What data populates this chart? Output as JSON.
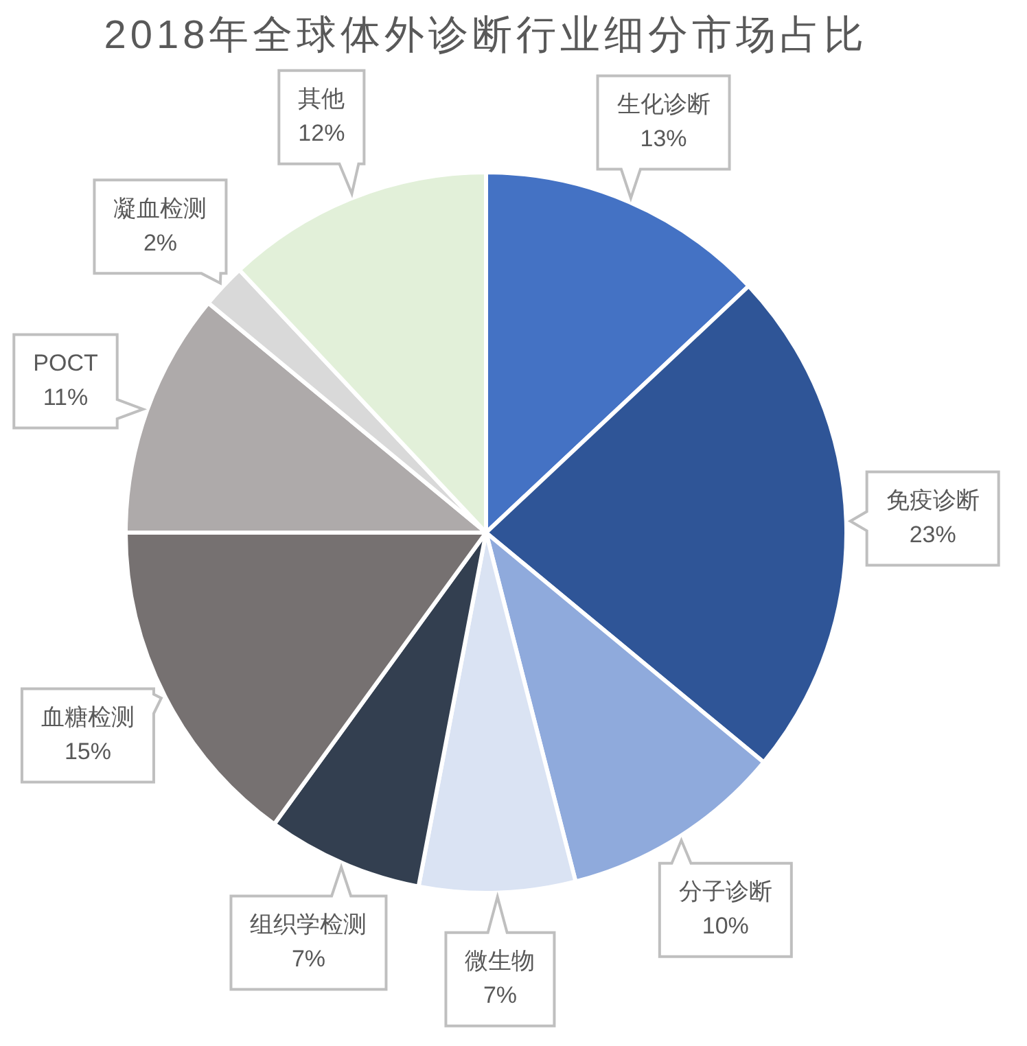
{
  "chart_data": {
    "type": "pie",
    "title": "2018年全球体外诊断行业细分市场占比",
    "categories": [
      "生化诊断",
      "免疫诊断",
      "分子诊断",
      "微生物",
      "组织学检测",
      "血糖检测",
      "POCT",
      "凝血检测",
      "其他"
    ],
    "values": [
      13,
      23,
      10,
      7,
      7,
      15,
      11,
      2,
      12
    ],
    "colors": [
      "#4472c4",
      "#2f5597",
      "#8faadc",
      "#dae3f3",
      "#333f50",
      "#767171",
      "#aeaaaa",
      "#d9d9d9",
      "#e2f0d9"
    ],
    "value_labels": [
      "13%",
      "23%",
      "10%",
      "7%",
      "7%",
      "15%",
      "11%",
      "2%",
      "12%"
    ]
  }
}
